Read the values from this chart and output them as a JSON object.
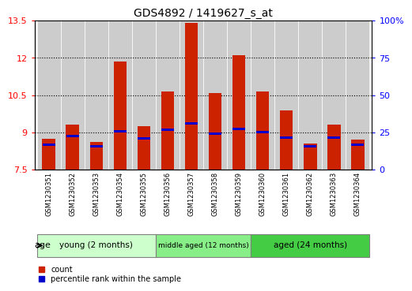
{
  "title": "GDS4892 / 1419627_s_at",
  "samples": [
    "GSM1230351",
    "GSM1230352",
    "GSM1230353",
    "GSM1230354",
    "GSM1230355",
    "GSM1230356",
    "GSM1230357",
    "GSM1230358",
    "GSM1230359",
    "GSM1230360",
    "GSM1230361",
    "GSM1230362",
    "GSM1230363",
    "GSM1230364"
  ],
  "count_values": [
    8.75,
    9.3,
    8.6,
    11.85,
    9.25,
    10.65,
    13.4,
    10.6,
    12.1,
    10.65,
    9.9,
    8.55,
    9.3,
    8.7
  ],
  "percentile_values": [
    8.5,
    8.85,
    8.45,
    9.05,
    8.75,
    9.1,
    9.35,
    8.95,
    9.15,
    9.0,
    8.8,
    8.45,
    8.8,
    8.5
  ],
  "ylim": [
    7.5,
    13.5
  ],
  "yticks": [
    7.5,
    9.0,
    10.5,
    12.0,
    13.5
  ],
  "ytick_labels": [
    "7.5",
    "9",
    "10.5",
    "12",
    "13.5"
  ],
  "y2ticks": [
    0,
    25,
    50,
    75,
    100
  ],
  "y2tick_labels": [
    "0",
    "25",
    "50",
    "75",
    "100%"
  ],
  "groups": [
    {
      "label": "young (2 months)",
      "start": 0,
      "end": 5
    },
    {
      "label": "middle aged (12 months)",
      "start": 5,
      "end": 9
    },
    {
      "label": "aged (24 months)",
      "start": 9,
      "end": 14
    }
  ],
  "group_colors": [
    "#CCFFCC",
    "#88EE88",
    "#44CC44"
  ],
  "bar_color": "#CC2200",
  "percentile_color": "#0000CC",
  "bar_bottom": 7.5,
  "bar_width": 0.55,
  "legend_items": [
    {
      "label": "count",
      "color": "#CC2200"
    },
    {
      "label": "percentile rank within the sample",
      "color": "#0000CC"
    }
  ],
  "grid_yticks": [
    9.0,
    10.5,
    12.0
  ],
  "age_label": "age"
}
